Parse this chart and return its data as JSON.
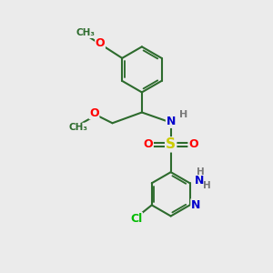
{
  "bg_color": "#ebebeb",
  "bond_color": "#2d6b2d",
  "bond_lw": 1.5,
  "atom_colors": {
    "N": "#0000cc",
    "O": "#ff0000",
    "S": "#cccc00",
    "Cl": "#00bb00",
    "C": "#2d6b2d",
    "H": "#7a7a7a"
  },
  "font_size": 9,
  "small_font": 7.5
}
